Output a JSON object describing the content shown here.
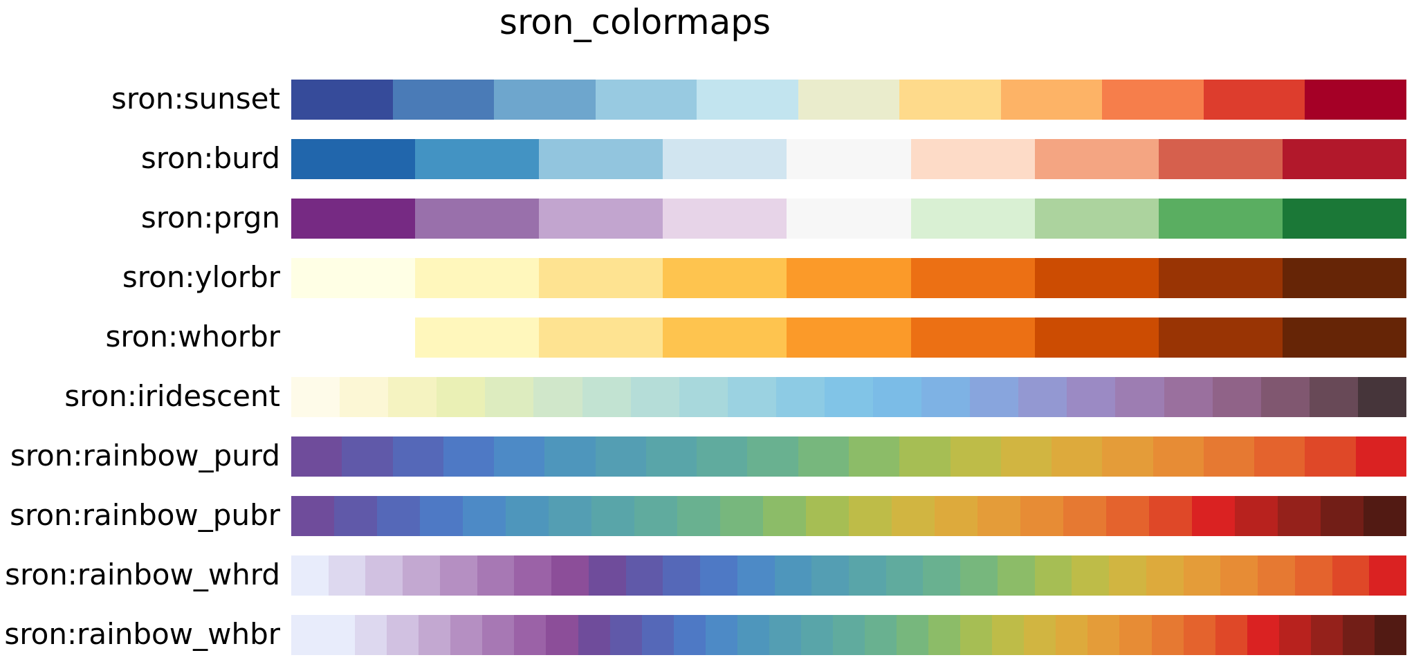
{
  "chart_data": {
    "type": "heatmap",
    "title": "sron_colormaps",
    "grid": false,
    "colormaps": [
      {
        "name": "sron:sunset",
        "colors": [
          "#364B9A",
          "#4A7BB7",
          "#6EA6CD",
          "#98CAE1",
          "#C2E4EF",
          "#EAECCC",
          "#FEDA8B",
          "#FDB366",
          "#F67E4B",
          "#DD3D2D",
          "#A50026"
        ]
      },
      {
        "name": "sron:burd",
        "colors": [
          "#2166AC",
          "#4393C3",
          "#92C5DE",
          "#D1E5F0",
          "#F7F7F7",
          "#FDDBC7",
          "#F4A582",
          "#D6604D",
          "#B2182B"
        ]
      },
      {
        "name": "sron:prgn",
        "colors": [
          "#762A83",
          "#9970AB",
          "#C2A5CF",
          "#E7D4E8",
          "#F7F7F7",
          "#D9F0D3",
          "#ACD39E",
          "#5AAE61",
          "#1B7837"
        ]
      },
      {
        "name": "sron:ylorbr",
        "colors": [
          "#FFFFE5",
          "#FFF7BC",
          "#FEE391",
          "#FEC44F",
          "#FB9A29",
          "#EC7014",
          "#CC4C02",
          "#993404",
          "#662506"
        ]
      },
      {
        "name": "sron:whorbr",
        "colors": [
          "#FFFFFF",
          "#FFF7BC",
          "#FEE391",
          "#FEC44F",
          "#FB9A29",
          "#EC7014",
          "#CC4C02",
          "#993404",
          "#662506"
        ]
      },
      {
        "name": "sron:iridescent",
        "colors": [
          "#FEFBE9",
          "#FCF7D5",
          "#F5F3C1",
          "#EAF0B5",
          "#DDECBF",
          "#D0E7CA",
          "#C2E3D2",
          "#B5DDD8",
          "#A8D8DC",
          "#9BD2E1",
          "#8DCBE4",
          "#81C4E7",
          "#7BBCE7",
          "#7EB2E4",
          "#88A5DD",
          "#9398D2",
          "#9B8AC4",
          "#9D7DB2",
          "#9A709E",
          "#906388",
          "#805770",
          "#684957",
          "#46353A"
        ]
      },
      {
        "name": "sron:rainbow_purd",
        "colors": [
          "#6F4C9B",
          "#6059A9",
          "#5568B8",
          "#4E79C5",
          "#4D8AC6",
          "#4E96BC",
          "#549EB3",
          "#59A5A9",
          "#60AB9E",
          "#69B190",
          "#77B77D",
          "#8CBC68",
          "#A6BE54",
          "#BEBC48",
          "#D1B541",
          "#DDAA3C",
          "#E49C39",
          "#E78C35",
          "#E67932",
          "#E4632D",
          "#DF4828",
          "#DA2222"
        ]
      },
      {
        "name": "sron:rainbow_pubr",
        "colors": [
          "#6F4C9B",
          "#6059A9",
          "#5568B8",
          "#4E79C5",
          "#4D8AC6",
          "#4E96BC",
          "#549EB3",
          "#59A5A9",
          "#60AB9E",
          "#69B190",
          "#77B77D",
          "#8CBC68",
          "#A6BE54",
          "#BEBC48",
          "#D1B541",
          "#DDAA3C",
          "#E49C39",
          "#E78C35",
          "#E67932",
          "#E4632D",
          "#DF4828",
          "#DA2222",
          "#B8221E",
          "#95211B",
          "#721E17",
          "#521A13"
        ]
      },
      {
        "name": "sron:rainbow_whrd",
        "colors": [
          "#E8ECFB",
          "#DDD8EF",
          "#D1C1E1",
          "#C3A8D1",
          "#B58FC2",
          "#A778B4",
          "#9B62A7",
          "#8C4E99",
          "#6F4C9B",
          "#6059A9",
          "#5568B8",
          "#4E79C5",
          "#4D8AC6",
          "#4E96BC",
          "#549EB3",
          "#59A5A9",
          "#60AB9E",
          "#69B190",
          "#77B77D",
          "#8CBC68",
          "#A6BE54",
          "#BEBC48",
          "#D1B541",
          "#DDAA3C",
          "#E49C39",
          "#E78C35",
          "#E67932",
          "#E4632D",
          "#DF4828",
          "#DA2222"
        ]
      },
      {
        "name": "sron:rainbow_whbr",
        "colors": [
          "#E8ECFB",
          "#E8ECFB",
          "#DDD8EF",
          "#D1C1E1",
          "#C3A8D1",
          "#B58FC2",
          "#A778B4",
          "#9B62A7",
          "#8C4E99",
          "#6F4C9B",
          "#6059A9",
          "#5568B8",
          "#4E79C5",
          "#4D8AC6",
          "#4E96BC",
          "#549EB3",
          "#59A5A9",
          "#60AB9E",
          "#69B190",
          "#77B77D",
          "#8CBC68",
          "#A6BE54",
          "#BEBC48",
          "#D1B541",
          "#DDAA3C",
          "#E49C39",
          "#E78C35",
          "#E67932",
          "#E4632D",
          "#DF4828",
          "#DA2222",
          "#B8221E",
          "#95211B",
          "#721E17",
          "#521A13"
        ]
      }
    ]
  }
}
